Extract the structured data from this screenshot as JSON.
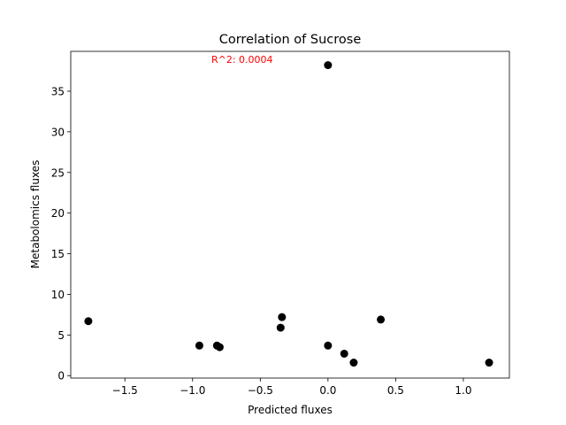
{
  "chart_data": {
    "type": "scatter",
    "title": "Correlation of Sucrose",
    "xlabel": "Predicted fluxes",
    "ylabel": "Metabolomics fluxes",
    "annotation": "R^2: 0.0004",
    "annotation_color": "#ff0000",
    "marker_color": "#000000",
    "xlim": [
      -1.9,
      1.34
    ],
    "ylim": [
      -0.3,
      39.9
    ],
    "xticks": [
      -1.5,
      -1.0,
      -0.5,
      0.0,
      0.5,
      1.0
    ],
    "xtick_labels": [
      "−1.5",
      "−1.0",
      "−0.5",
      "0.0",
      "0.5",
      "1.0"
    ],
    "yticks": [
      0,
      5,
      10,
      15,
      20,
      25,
      30,
      35
    ],
    "ytick_labels": [
      "0",
      "5",
      "10",
      "15",
      "20",
      "25",
      "30",
      "35"
    ],
    "grid": false,
    "points": [
      {
        "x": -1.77,
        "y": 6.7
      },
      {
        "x": -0.95,
        "y": 3.7
      },
      {
        "x": -0.82,
        "y": 3.7
      },
      {
        "x": -0.8,
        "y": 3.5
      },
      {
        "x": -0.35,
        "y": 5.9
      },
      {
        "x": -0.34,
        "y": 7.2
      },
      {
        "x": 0.0,
        "y": 38.2
      },
      {
        "x": 0.0,
        "y": 3.7
      },
      {
        "x": 0.12,
        "y": 2.7
      },
      {
        "x": 0.19,
        "y": 1.6
      },
      {
        "x": 0.39,
        "y": 6.9
      },
      {
        "x": 1.19,
        "y": 1.6
      }
    ]
  }
}
